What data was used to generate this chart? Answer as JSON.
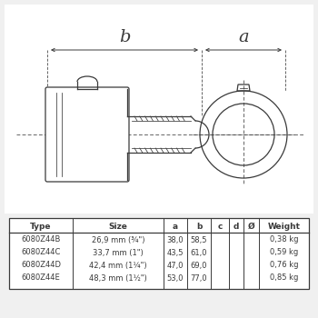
{
  "bg_color": "#f0f0f0",
  "line_color": "#3a3a3a",
  "table_header": [
    "Type",
    "Size",
    "a",
    "b",
    "c",
    "d",
    "Ø",
    "Weight"
  ],
  "table_rows": [
    [
      "6080Z44B",
      "26,9 mm (¾\")",
      "38,0",
      "58,5",
      "",
      "",
      "",
      "0,38 kg"
    ],
    [
      "6080Z44C",
      "33,7 mm (1\")",
      "43,5",
      "61,0",
      "",
      "",
      "",
      "0,59 kg"
    ],
    [
      "6080Z44D",
      "42,4 mm (1¼\")",
      "47,0",
      "69,0",
      "",
      "",
      "",
      "0,76 kg"
    ],
    [
      "6080Z44E",
      "48,3 mm (1½\")",
      "53,0",
      "77,0",
      "",
      "",
      "",
      "0,85 kg"
    ]
  ],
  "label_a": "a",
  "label_b": "b",
  "drawing_bg": "#ffffff"
}
